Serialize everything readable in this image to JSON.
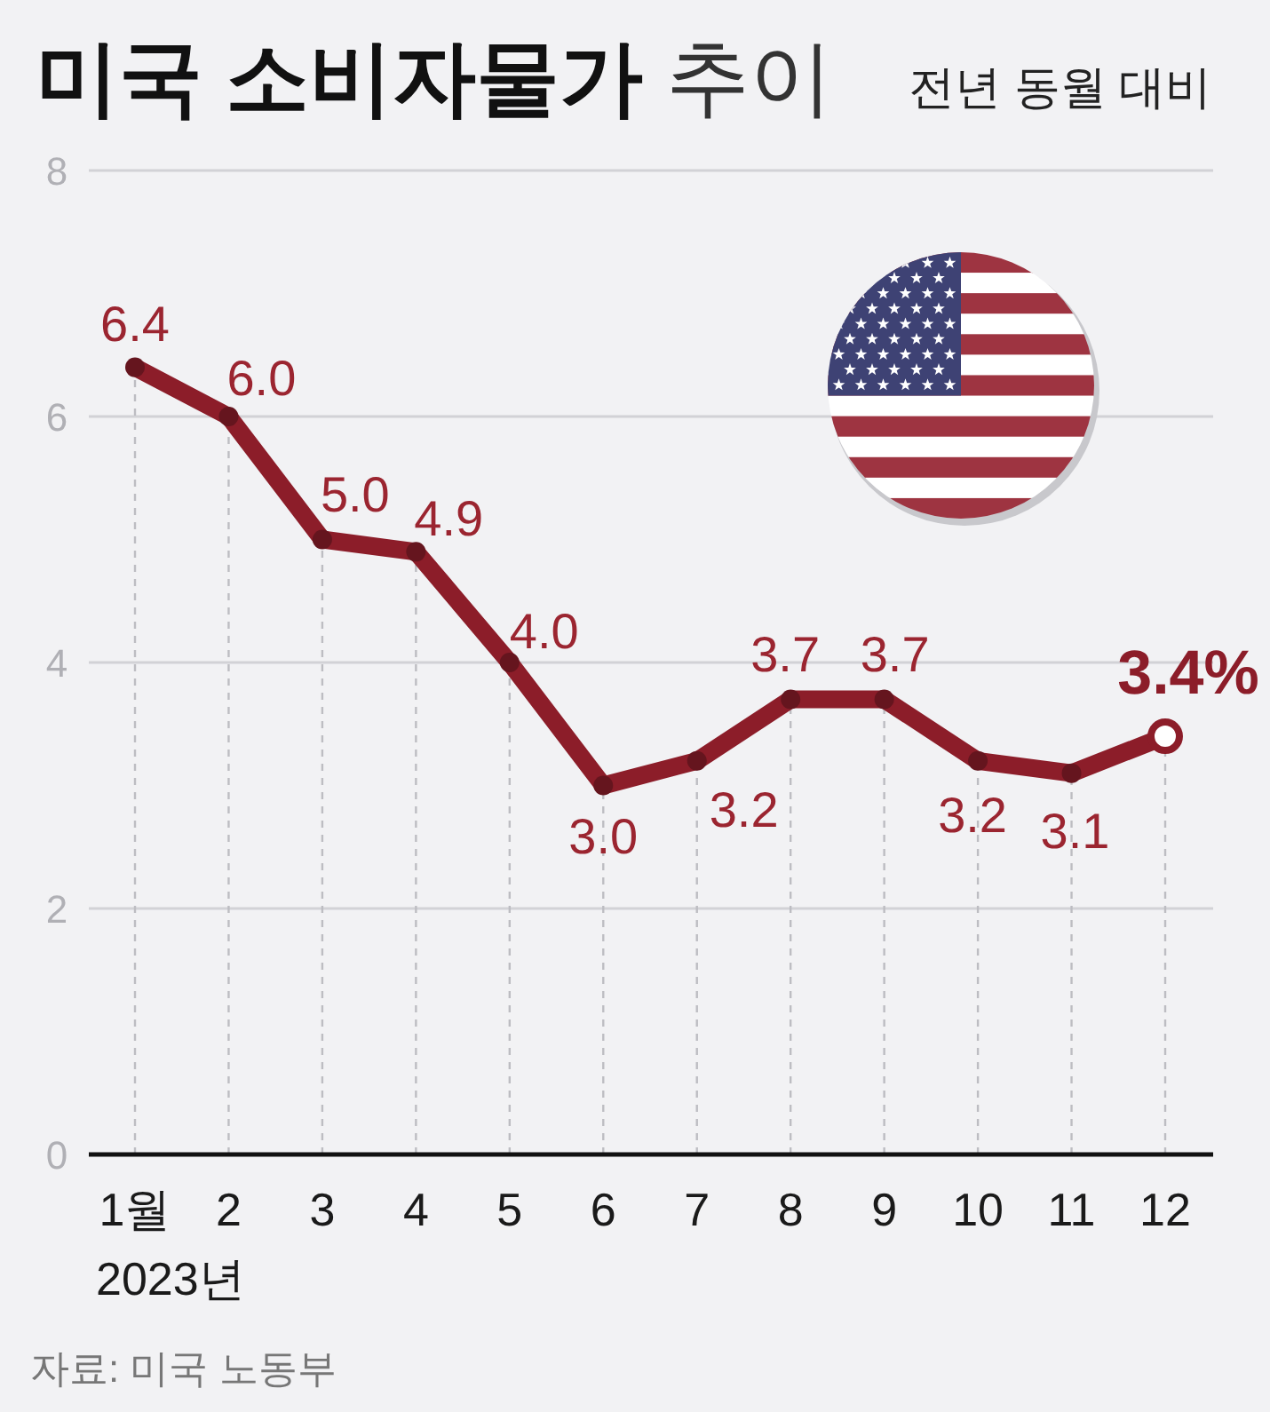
{
  "chart_data": {
    "type": "line",
    "title": "미국 소비자물가 추이",
    "subtitle": "전년 동월 대비",
    "categories": [
      "1월",
      "2",
      "3",
      "4",
      "5",
      "6",
      "7",
      "8",
      "9",
      "10",
      "11",
      "12"
    ],
    "values": [
      6.4,
      6.0,
      5.0,
      4.9,
      4.0,
      3.0,
      3.2,
      3.7,
      3.7,
      3.2,
      3.1,
      3.4
    ],
    "value_labels": [
      "6.4",
      "6.0",
      "5.0",
      "4.9",
      "4.0",
      "3.0",
      "3.2",
      "3.7",
      "3.7",
      "3.2",
      "3.1",
      "3.4%"
    ],
    "color": "#8c1d29",
    "ylim": [
      0,
      8
    ],
    "yticks": [
      0,
      2,
      4,
      6,
      8
    ],
    "grid": true,
    "marker": "circle",
    "line_style": "solid",
    "annotations": [
      "2023년",
      "자료: 미국 노동부"
    ]
  }
}
